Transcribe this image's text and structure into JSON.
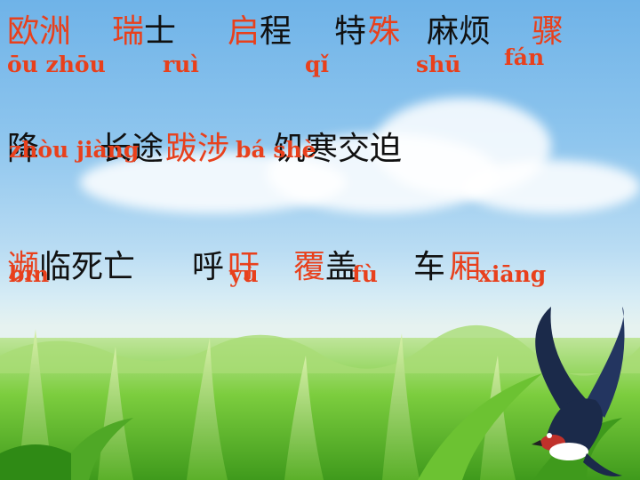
{
  "row1": {
    "words": [
      {
        "red": "欧洲",
        "black": ""
      },
      {
        "red": "瑞",
        "black": "士"
      },
      {
        "red": "启",
        "black": "程"
      },
      {
        "red": "特",
        "black": ""
      },
      {
        "red": "殊",
        "black": ""
      },
      {
        "red": "",
        "black": "麻烦"
      },
      {
        "red": "骤",
        "black": ""
      }
    ],
    "pinyin": [
      "ōu zhōu",
      "ruì",
      "qǐ",
      "shū",
      "fán"
    ]
  },
  "row2": {
    "words": [
      {
        "red": "",
        "black": "降"
      },
      {
        "red": "",
        "black": "长途"
      },
      {
        "red": "跋涉",
        "black": ""
      },
      {
        "red": "",
        "black": "饥寒交迫"
      }
    ],
    "pinyin": [
      "zhòu jiàng",
      "bá shè"
    ]
  },
  "row3": {
    "words": [
      {
        "red": "濒",
        "black": "临死亡"
      },
      {
        "red": "",
        "black": "呼"
      },
      {
        "red": "吁",
        "black": ""
      },
      {
        "red": "覆",
        "black": "盖"
      },
      {
        "red": "",
        "black": "车"
      },
      {
        "red": "厢",
        "black": ""
      }
    ],
    "pinyin": [
      "bīn",
      "yù",
      "fù",
      "xiāng"
    ]
  },
  "colors": {
    "accent": "#e8401c",
    "text": "#111111"
  },
  "decor": {
    "swallow": "swallow-bird",
    "field": "grass-field"
  }
}
